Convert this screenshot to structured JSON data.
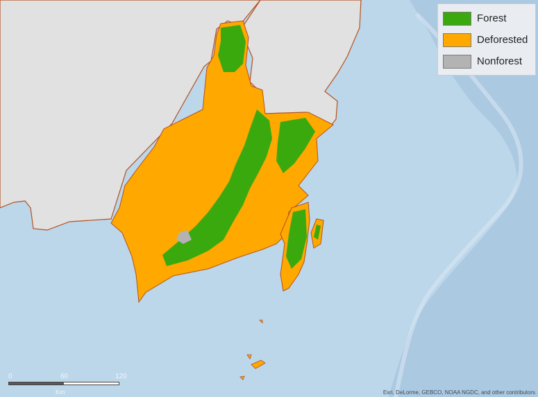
{
  "map": {
    "legend": {
      "items": [
        {
          "label": "Forest",
          "color": "#3aa90e"
        },
        {
          "label": "Deforested",
          "color": "#fea800"
        },
        {
          "label": "Nonforest",
          "color": "#b3b3b3"
        }
      ]
    },
    "scale": {
      "ticks": [
        "0",
        "60",
        "120"
      ],
      "unit": "Km"
    },
    "attribution": "Esri, DeLorme, GEBCO, NOAA NGDC, and other contributors",
    "colors": {
      "ocean": "#bcd6ea",
      "deep_ocean": "#9fbfdc",
      "land": "#e1e1e1",
      "border": "#b5501e"
    }
  }
}
